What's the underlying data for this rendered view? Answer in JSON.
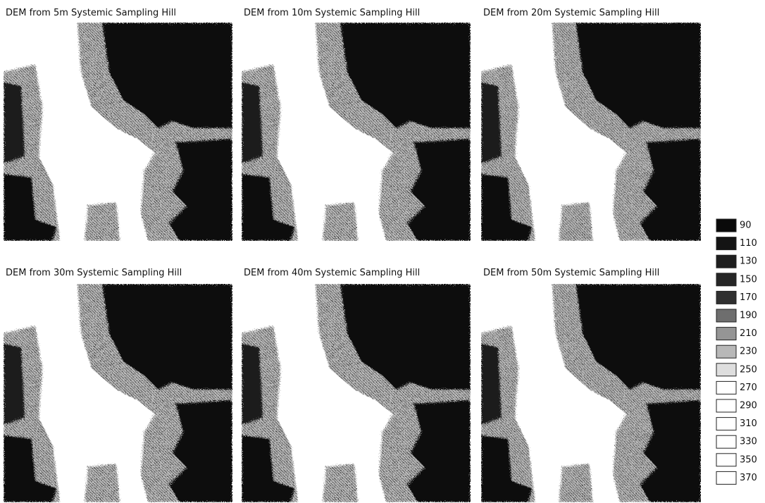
{
  "panels": [
    {
      "title": "DEM from 5m Systemic Sampling Hill"
    },
    {
      "title": "DEM from 10m Systemic Sampling Hill"
    },
    {
      "title": "DEM from 20m Systemic Sampling Hill"
    },
    {
      "title": "DEM from 30m Systemic Sampling Hill"
    },
    {
      "title": "DEM from 40m Systemic Sampling Hill"
    },
    {
      "title": "DEM from 50m Systemic Sampling Hill"
    }
  ],
  "legend": [
    {
      "value": 90,
      "color": "#0a0a0a"
    },
    {
      "value": 110,
      "color": "#141414"
    },
    {
      "value": 130,
      "color": "#1e1e1e"
    },
    {
      "value": 150,
      "color": "#262626"
    },
    {
      "value": 170,
      "color": "#303030"
    },
    {
      "value": 190,
      "color": "#6e6e6e"
    },
    {
      "value": 210,
      "color": "#959595"
    },
    {
      "value": 230,
      "color": "#b8b8b8"
    },
    {
      "value": 250,
      "color": "#dedede"
    },
    {
      "value": 270,
      "color": "#ffffff"
    },
    {
      "value": 290,
      "color": "#ffffff"
    },
    {
      "value": 310,
      "color": "#ffffff"
    },
    {
      "value": 330,
      "color": "#ffffff"
    },
    {
      "value": 350,
      "color": "#ffffff"
    },
    {
      "value": 370,
      "color": "#ffffff"
    }
  ]
}
